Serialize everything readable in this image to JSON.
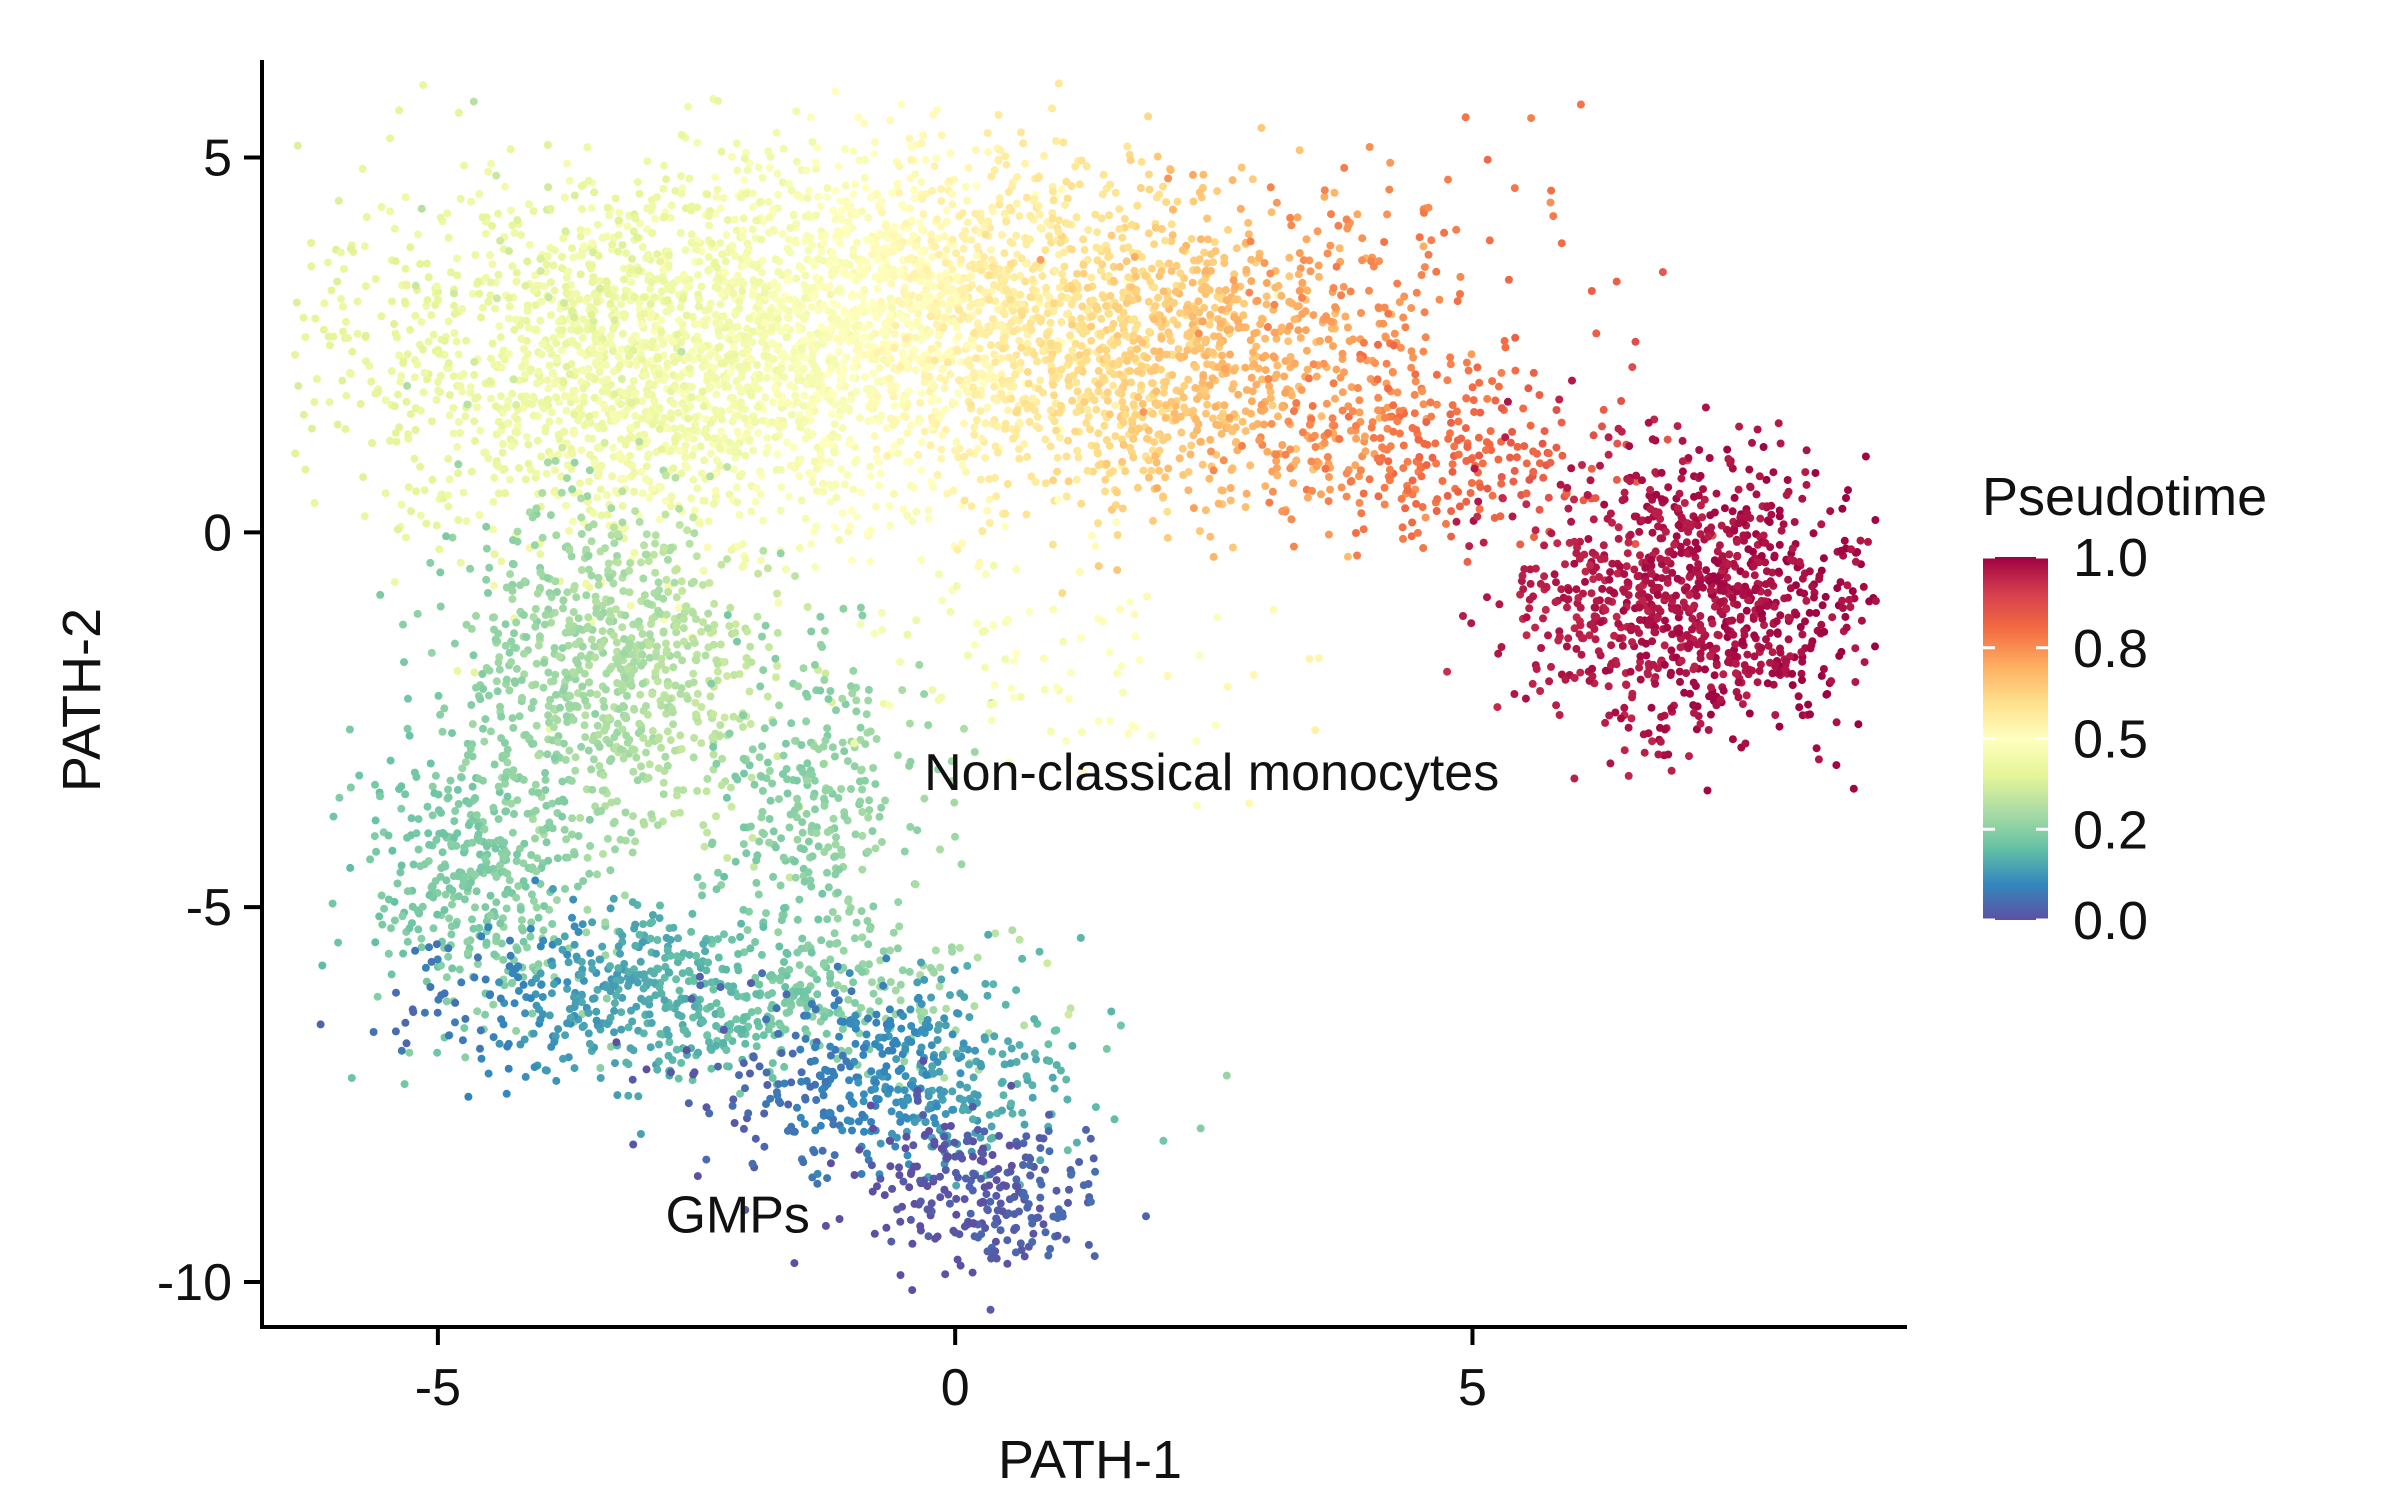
{
  "chart_data": {
    "type": "scatter",
    "title": "",
    "xlabel": "PATH-1",
    "ylabel": "PATH-2",
    "xlim": [
      -6.7,
      9.2
    ],
    "ylim": [
      -10.6,
      6.3
    ],
    "x_ticks": [
      -5,
      0,
      5
    ],
    "y_ticks": [
      5,
      0,
      -5,
      -10
    ],
    "grid": false,
    "legend": {
      "title": "Pseudotime",
      "placement": "right",
      "type": "colorbar",
      "ticks": [
        "1.0",
        "0.8",
        "0.5",
        "0.2",
        "0.0"
      ],
      "tick_values": [
        1.0,
        0.75,
        0.5,
        0.25,
        0.0
      ]
    },
    "colormap": {
      "name": "Spectral",
      "stops": [
        "#5e4fa2",
        "#3288bd",
        "#66c2a5",
        "#abdda4",
        "#e6f598",
        "#ffffbf",
        "#fee08b",
        "#fdae61",
        "#f46d43",
        "#d53e4f",
        "#9e0142"
      ]
    },
    "annotations": [
      {
        "text": "Non-classical monocytes",
        "x": -0.3,
        "y": -3.2
      },
      {
        "text": "GMPs",
        "x": -2.8,
        "y": -9.1
      }
    ],
    "clusters": [
      {
        "name": "upper-left-yellow",
        "cx": -3.0,
        "cy": 2.2,
        "sx": 1.6,
        "sy": 1.2,
        "n": 1800,
        "t": 0.45,
        "tslope": 0.015
      },
      {
        "name": "upper-middle",
        "cx": -0.3,
        "cy": 3.0,
        "sx": 1.6,
        "sy": 1.1,
        "n": 1700,
        "t": 0.52,
        "tslope": 0.04
      },
      {
        "name": "upper-right-orange",
        "cx": 2.3,
        "cy": 2.2,
        "sx": 1.2,
        "sy": 1.0,
        "n": 800,
        "t": 0.66,
        "tslope": 0.045
      },
      {
        "name": "bridge",
        "cx": 4.6,
        "cy": 1.1,
        "sx": 1.0,
        "sy": 0.55,
        "n": 260,
        "t": 0.8,
        "tslope": 0.03
      },
      {
        "name": "sparse-top",
        "cx": 3.9,
        "cy": 3.8,
        "sx": 1.1,
        "sy": 1.0,
        "n": 80,
        "t": 0.76,
        "tslope": 0.02
      },
      {
        "name": "non-classical-monocytes",
        "cx": 7.1,
        "cy": -0.8,
        "sx": 0.85,
        "sy": 0.9,
        "n": 1000,
        "t": 0.97,
        "tslope": 0.01
      },
      {
        "name": "stem",
        "cx": -3.3,
        "cy": -1.8,
        "sx": 0.75,
        "sy": 1.1,
        "n": 800,
        "t": 0.3,
        "tslope": 0.03
      },
      {
        "name": "right-arm",
        "cx": -1.3,
        "cy": -3.6,
        "sx": 0.5,
        "sy": 1.1,
        "n": 300,
        "t": 0.26,
        "tslope": 0.02
      },
      {
        "name": "left-arm",
        "cx": -4.6,
        "cy": -4.6,
        "sx": 0.55,
        "sy": 1.0,
        "n": 420,
        "t": 0.24,
        "tslope": 0.02
      },
      {
        "name": "lower-band",
        "cx": -2.6,
        "cy": -6.2,
        "sx": 1.3,
        "sy": 0.55,
        "n": 650,
        "t": 0.18,
        "tslope": 0.045
      },
      {
        "name": "lower-mid",
        "cx": -0.6,
        "cy": -7.3,
        "sx": 0.9,
        "sy": 0.65,
        "n": 450,
        "t": 0.11,
        "tslope": 0.045
      },
      {
        "name": "gmp-tail",
        "cx": 0.3,
        "cy": -8.8,
        "sx": 0.6,
        "sy": 0.55,
        "n": 260,
        "t": 0.02,
        "tslope": 0.02
      },
      {
        "name": "sparse-mid",
        "cx": 0.8,
        "cy": -1.6,
        "sx": 1.0,
        "sy": 0.9,
        "n": 90,
        "t": 0.48,
        "tslope": 0.02
      }
    ]
  }
}
